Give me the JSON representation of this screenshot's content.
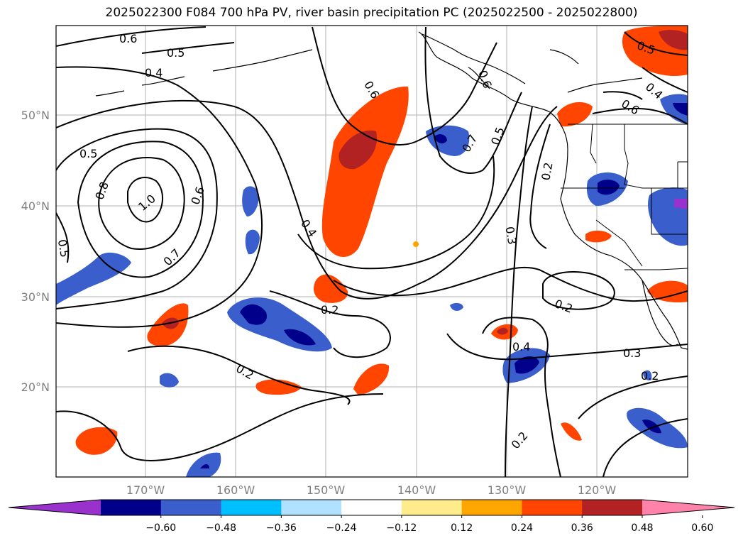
{
  "title": "2025022300 F084 700 hPa PV, river basin precipitation PC (2025022500 - 2025022800)",
  "map": {
    "lat_ticks": [
      "50°N",
      "40°N",
      "30°N",
      "20°N"
    ],
    "lon_ticks": [
      "170°W",
      "160°W",
      "150°W",
      "140°W",
      "130°W",
      "120°W"
    ]
  },
  "contour_labels": [
    "0.6",
    "0.5",
    "0.4",
    "0.5",
    "0.8",
    "1.0",
    "0.6",
    "0.5",
    "0.7",
    "0.6",
    "0.4",
    "0.2",
    "0.6",
    "0.7",
    "0.5",
    "0.2",
    "0.3",
    "0.5",
    "0.4",
    "0.6",
    "0.2",
    "0.4",
    "0.3",
    "0.2",
    "0.2",
    "0.2"
  ],
  "colorbar": {
    "ticks": [
      "−0.60",
      "−0.48",
      "−0.36",
      "−0.24",
      "−0.12",
      "0.12",
      "0.24",
      "0.36",
      "0.48",
      "0.60"
    ],
    "colors": [
      "#9932cc",
      "#00008b",
      "#3a5fcd",
      "#00bfff",
      "#b0e2ff",
      "#ffffff",
      "#ffec8b",
      "#ffa500",
      "#ff4500",
      "#b22222",
      "#ff82ab"
    ]
  }
}
